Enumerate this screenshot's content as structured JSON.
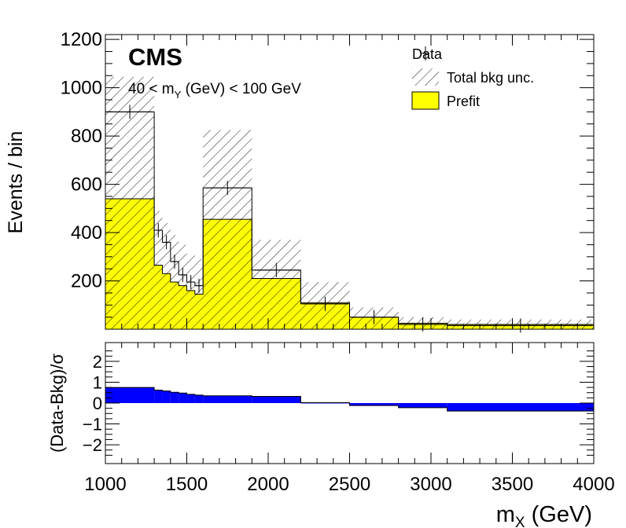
{
  "chart_data": [
    {
      "type": "bar",
      "panel": "main",
      "experiment": "CMS",
      "selection_prefix": "40 < m",
      "selection_sub": "Y",
      "selection_suffix": " (GeV) < 100 GeV",
      "ylabel": "Events / bin",
      "ylim": [
        0,
        1220
      ],
      "yticks": [
        200,
        400,
        600,
        800,
        1000,
        1200
      ],
      "xlim": [
        1000,
        4000
      ],
      "bin_edges": [
        1000,
        1300,
        1350,
        1400,
        1450,
        1500,
        1550,
        1600,
        1900,
        2200,
        2500,
        2800,
        3100,
        4000
      ],
      "series": [
        {
          "name": "Prefit",
          "color": "#ffff00",
          "values": [
            540,
            265,
            230,
            195,
            180,
            160,
            145,
            455,
            210,
            110,
            50,
            25,
            20
          ]
        },
        {
          "name": "Total bkg unc.",
          "kind": "band",
          "low": [
            0,
            0,
            0,
            0,
            0,
            0,
            0,
            0,
            0,
            0,
            0,
            0,
            0
          ],
          "high": [
            1045,
            490,
            440,
            390,
            350,
            310,
            290,
            825,
            370,
            195,
            90,
            50,
            40
          ]
        },
        {
          "name": "Data",
          "kind": "points",
          "values": [
            900,
            410,
            360,
            280,
            225,
            195,
            180,
            585,
            245,
            105,
            50,
            20,
            15
          ]
        }
      ],
      "legend_position": "top-right"
    },
    {
      "type": "bar",
      "panel": "ratio",
      "ylabel": "(Data-Bkg)/σ",
      "ylim": [
        -2.9,
        2.9
      ],
      "yticks": [
        -2,
        -1,
        0,
        1,
        2
      ],
      "xticks": [
        1000,
        1500,
        2000,
        2500,
        3000,
        3500,
        4000
      ],
      "xlabel_prefix": "m",
      "xlabel_sub": "X",
      "xlabel_suffix": " (GeV)",
      "bin_edges": [
        1000,
        1300,
        1350,
        1400,
        1450,
        1500,
        1550,
        1600,
        1900,
        2200,
        2500,
        2800,
        3100,
        4000
      ],
      "values": [
        0.75,
        0.62,
        0.58,
        0.52,
        0.48,
        0.42,
        0.38,
        0.35,
        0.32,
        0.02,
        -0.12,
        -0.22,
        -0.38
      ],
      "color": "#0000ff"
    }
  ],
  "legend": {
    "data": "Data",
    "unc": "Total bkg unc.",
    "prefit": "Prefit"
  }
}
